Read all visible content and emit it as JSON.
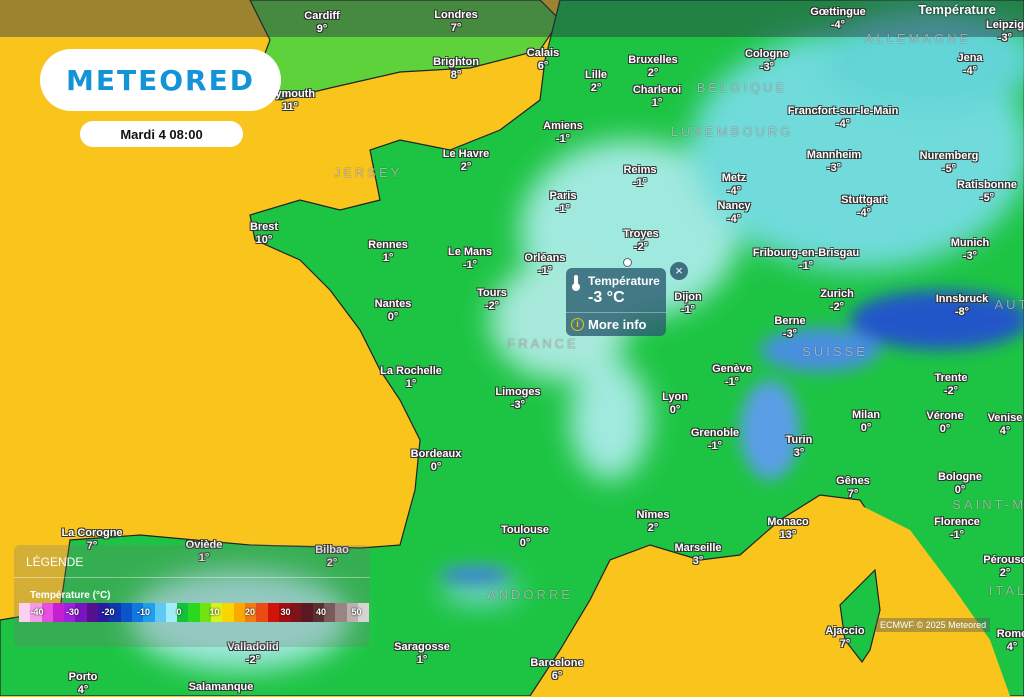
{
  "layer_title": "Température",
  "logo_text": "METEORED",
  "datetime": "Mardi 4 08:00",
  "popup": {
    "label": "Température",
    "value": "-3 °C",
    "more_info": "More info",
    "close": "×"
  },
  "legend": {
    "title": "LÉGENDE",
    "scale_label": "Température (°C)",
    "ticks": [
      "-40",
      "-30",
      "-20",
      "-10",
      "0",
      "10",
      "20",
      "30",
      "40",
      "50"
    ],
    "colors": [
      "#fcd0f0",
      "#f59ce8",
      "#e64fe0",
      "#c41fd0",
      "#a020e0",
      "#7a14c0",
      "#54108f",
      "#2a1ca0",
      "#1036b0",
      "#0b55c8",
      "#1079e0",
      "#1fa0ef",
      "#5fc8f5",
      "#a0ecfa",
      "#14c13a",
      "#2ad81e",
      "#70e410",
      "#d8f21c",
      "#fbd500",
      "#fba800",
      "#f57a10",
      "#ea4a14",
      "#d0140a",
      "#a80c10",
      "#80121a",
      "#5a1820",
      "#5c3030",
      "#7a5a5a",
      "#9a8484",
      "#bcb0b0",
      "#d8d4d4"
    ]
  },
  "attribution": "ECMWF © 2025 Meteored",
  "colors": {
    "sea": "#f9c51c",
    "land_mild": "#1dc443",
    "cold": "#b8f0fa",
    "very_cold": "#2256c8",
    "brand": "#1393d8"
  },
  "countries": [
    "ALLEMAGNE",
    "BELGIQUE",
    "LUXEMBOURG",
    "JERSEY",
    "FRANCE",
    "SUISSE",
    "AUT",
    "SAINT-MA",
    "ITAL",
    "ANDORRE"
  ],
  "cities": [
    {
      "name": "Cardiff",
      "temp": "9°"
    },
    {
      "name": "Londres",
      "temp": "7°"
    },
    {
      "name": "Gœttingue",
      "temp": "-4°"
    },
    {
      "name": "Leipzig",
      "temp": "-3°"
    },
    {
      "name": "Brighton",
      "temp": "8°"
    },
    {
      "name": "Plymouth",
      "temp": "11°"
    },
    {
      "name": "Calais",
      "temp": "6°"
    },
    {
      "name": "Lille",
      "temp": "2°"
    },
    {
      "name": "Bruxelles",
      "temp": "2°"
    },
    {
      "name": "Charleroi",
      "temp": "1°"
    },
    {
      "name": "Cologne",
      "temp": "-3°"
    },
    {
      "name": "Jena",
      "temp": "-4°"
    },
    {
      "name": "Francfort-sur-le-Main",
      "temp": "-4°"
    },
    {
      "name": "Amiens",
      "temp": "-1°"
    },
    {
      "name": "Le Havre",
      "temp": "2°"
    },
    {
      "name": "Reims",
      "temp": "-1°"
    },
    {
      "name": "Metz",
      "temp": "-4°"
    },
    {
      "name": "Mannheim",
      "temp": "-3°"
    },
    {
      "name": "Nuremberg",
      "temp": "-5°"
    },
    {
      "name": "Ratisbonne",
      "temp": "-5°"
    },
    {
      "name": "Paris",
      "temp": "-1°"
    },
    {
      "name": "Nancy",
      "temp": "-4°"
    },
    {
      "name": "Stuttgart",
      "temp": "-4°"
    },
    {
      "name": "Brest",
      "temp": "10°"
    },
    {
      "name": "Rennes",
      "temp": "1°"
    },
    {
      "name": "Le Mans",
      "temp": "-1°"
    },
    {
      "name": "Orléans",
      "temp": "-1°"
    },
    {
      "name": "Troyes",
      "temp": "-2°"
    },
    {
      "name": "Fribourg-en-Brisgau",
      "temp": "-1°"
    },
    {
      "name": "Munich",
      "temp": "-3°"
    },
    {
      "name": "Tours",
      "temp": "-2°"
    },
    {
      "name": "Dijon",
      "temp": "-1°"
    },
    {
      "name": "Zurich",
      "temp": "-2°"
    },
    {
      "name": "Innsbruck",
      "temp": "-8°"
    },
    {
      "name": "Nantes",
      "temp": "0°"
    },
    {
      "name": "Berne",
      "temp": "-3°"
    },
    {
      "name": "La Rochelle",
      "temp": "1°"
    },
    {
      "name": "Genève",
      "temp": "-1°"
    },
    {
      "name": "Trente",
      "temp": "-2°"
    },
    {
      "name": "Limoges",
      "temp": "-3°"
    },
    {
      "name": "Lyon",
      "temp": "0°"
    },
    {
      "name": "Milan",
      "temp": "0°"
    },
    {
      "name": "Vérone",
      "temp": "0°"
    },
    {
      "name": "Venise",
      "temp": "4°"
    },
    {
      "name": "Grenoble",
      "temp": "-1°"
    },
    {
      "name": "Turin",
      "temp": "3°"
    },
    {
      "name": "Bordeaux",
      "temp": "0°"
    },
    {
      "name": "Bologne",
      "temp": "0°"
    },
    {
      "name": "Gênes",
      "temp": "7°"
    },
    {
      "name": "Nîmes",
      "temp": "2°"
    },
    {
      "name": "Florence",
      "temp": "-1°"
    },
    {
      "name": "Monaco",
      "temp": "13°"
    },
    {
      "name": "Toulouse",
      "temp": "0°"
    },
    {
      "name": "Marseille",
      "temp": "3°"
    },
    {
      "name": "La Corogne",
      "temp": "7°"
    },
    {
      "name": "Oviède",
      "temp": "1°"
    },
    {
      "name": "Bilbao",
      "temp": "2°"
    },
    {
      "name": "Pérouse",
      "temp": "2°"
    },
    {
      "name": "Ajaccio",
      "temp": "7°"
    },
    {
      "name": "Rome",
      "temp": "4°"
    },
    {
      "name": "Valladolid",
      "temp": "-2°"
    },
    {
      "name": "Saragosse",
      "temp": "1°"
    },
    {
      "name": "Barcelone",
      "temp": "6°"
    },
    {
      "name": "Porto",
      "temp": "4°"
    },
    {
      "name": "Salamanque",
      "temp": ""
    }
  ]
}
